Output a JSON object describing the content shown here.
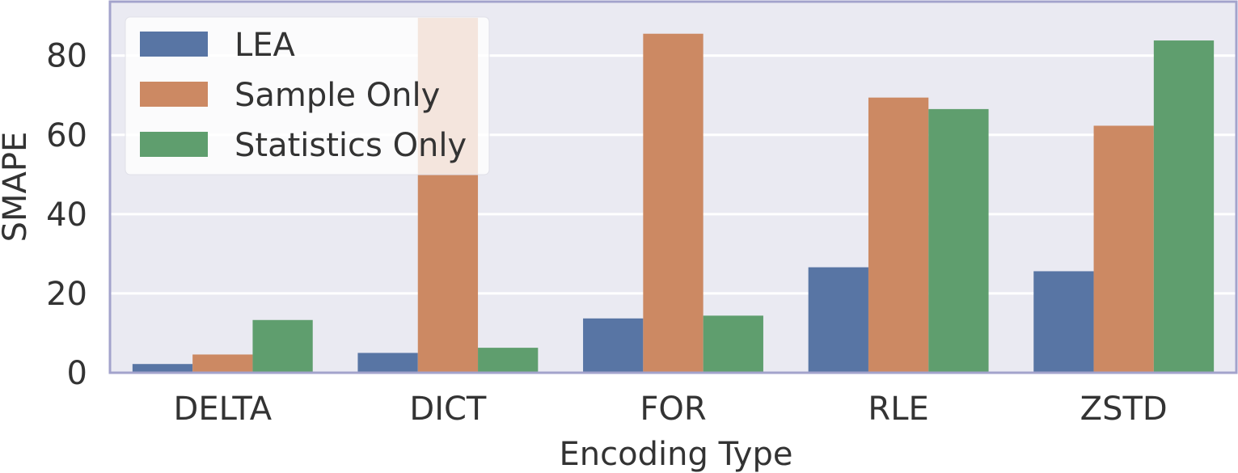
{
  "chart_data": {
    "type": "bar",
    "title": "",
    "xlabel": "Encoding Type",
    "ylabel": "SMAPE",
    "categories": [
      "DELTA",
      "DICT",
      "FOR",
      "RLE",
      "ZSTD"
    ],
    "series": [
      {
        "name": "LEA",
        "color": "#5875a4",
        "values": [
          2.2,
          5.0,
          13.7,
          26.6,
          25.6
        ]
      },
      {
        "name": "Sample Only",
        "color": "#cc8963",
        "values": [
          4.6,
          89.5,
          85.5,
          69.4,
          62.3
        ]
      },
      {
        "name": "Statistics Only",
        "color": "#5f9e6e",
        "values": [
          13.3,
          6.3,
          14.4,
          66.5,
          83.8
        ]
      }
    ],
    "ylim": [
      0,
      93.6
    ],
    "yticks": [
      "0",
      "20",
      "40",
      "60",
      "80"
    ],
    "grid": true,
    "legend_position": "top-left",
    "background": "#eaeaf2",
    "frame_color": "#a3a3cc"
  }
}
